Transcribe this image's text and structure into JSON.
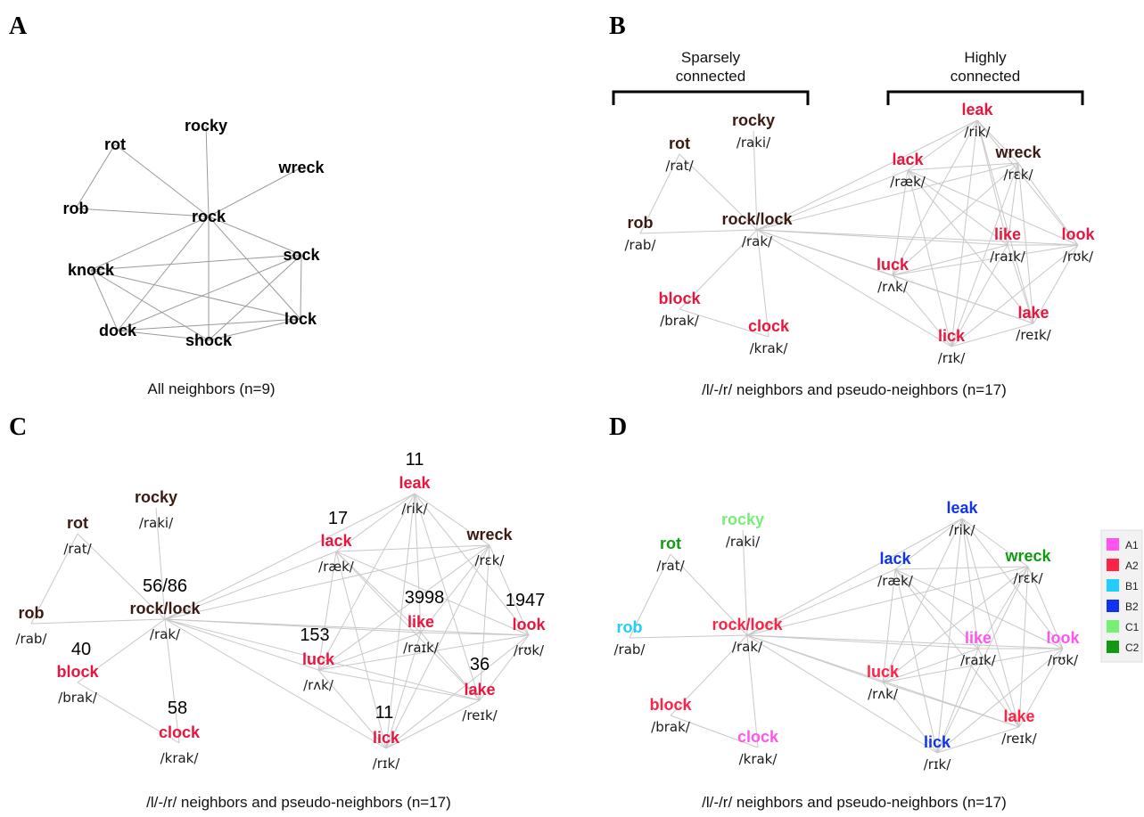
{
  "panels": {
    "A": {
      "letter": "A",
      "caption": "All neighbors (n=9)",
      "nodes": [
        {
          "id": "rocky",
          "label": "rocky"
        },
        {
          "id": "rot",
          "label": "rot"
        },
        {
          "id": "wreck",
          "label": "wreck"
        },
        {
          "id": "rob",
          "label": "rob"
        },
        {
          "id": "rock",
          "label": "rock"
        },
        {
          "id": "sock",
          "label": "sock"
        },
        {
          "id": "knock",
          "label": "knock"
        },
        {
          "id": "lock",
          "label": "lock"
        },
        {
          "id": "dock",
          "label": "dock"
        },
        {
          "id": "shock",
          "label": "shock"
        }
      ],
      "edges": [
        [
          "rot",
          "rob"
        ],
        [
          "rot",
          "rock"
        ],
        [
          "rob",
          "rock"
        ],
        [
          "rocky",
          "rock"
        ],
        [
          "wreck",
          "rock"
        ],
        [
          "rock",
          "knock"
        ],
        [
          "rock",
          "sock"
        ],
        [
          "rock",
          "lock"
        ],
        [
          "rock",
          "dock"
        ],
        [
          "rock",
          "shock"
        ],
        [
          "knock",
          "sock"
        ],
        [
          "knock",
          "lock"
        ],
        [
          "knock",
          "dock"
        ],
        [
          "knock",
          "shock"
        ],
        [
          "sock",
          "dock"
        ],
        [
          "sock",
          "lock"
        ],
        [
          "sock",
          "shock"
        ],
        [
          "dock",
          "lock"
        ],
        [
          "dock",
          "shock"
        ],
        [
          "shock",
          "lock"
        ]
      ]
    },
    "B": {
      "letter": "B",
      "caption": "/l/-/r/ neighbors and pseudo-neighbors (n=17)",
      "bracket_left": [
        "Sparsely",
        "connected"
      ],
      "bracket_right": [
        "Highly",
        "connected"
      ]
    },
    "C": {
      "letter": "C",
      "caption": "/l/-/r/ neighbors and pseudo-neighbors (n=17)",
      "counts": {
        "leak": "11",
        "lack": "17",
        "rocklock": "56/86",
        "like": "3998",
        "look": "1947",
        "luck": "153",
        "block": "40",
        "clock": "58",
        "lick": "11",
        "lake": "36"
      }
    },
    "D": {
      "letter": "D",
      "caption": "/l/-/r/ neighbors and pseudo-neighbors (n=17)",
      "legend": [
        {
          "label": "A1",
          "color": "#ff55ee"
        },
        {
          "label": "A2",
          "color": "#ff2244"
        },
        {
          "label": "B1",
          "color": "#22ccff"
        },
        {
          "label": "B2",
          "color": "#1133ee"
        },
        {
          "label": "C1",
          "color": "#77ee77"
        },
        {
          "label": "C2",
          "color": "#119911"
        }
      ]
    }
  },
  "network_nodes": [
    {
      "id": "rocky",
      "word": "rocky",
      "phon": "/raki/",
      "type": "r",
      "cat": "C1"
    },
    {
      "id": "rot",
      "word": "rot",
      "phon": "/rat/",
      "type": "r",
      "cat": "C2"
    },
    {
      "id": "rob",
      "word": "rob",
      "phon": "/rab/",
      "type": "r",
      "cat": "B1"
    },
    {
      "id": "rocklock",
      "word": "rock/lock",
      "phon": "/rak/",
      "type": "r",
      "cat": "A2"
    },
    {
      "id": "block",
      "word": "block",
      "phon": "/brak/",
      "type": "l",
      "cat": "A2"
    },
    {
      "id": "clock",
      "word": "clock",
      "phon": "/krak/",
      "type": "l",
      "cat": "A1"
    },
    {
      "id": "leak",
      "word": "leak",
      "phon": "/rik/",
      "type": "l",
      "cat": "B2"
    },
    {
      "id": "lack",
      "word": "lack",
      "phon": "/ræk/",
      "type": "l",
      "cat": "B2"
    },
    {
      "id": "wreck",
      "word": "wreck",
      "phon": "/rɛk/",
      "type": "r",
      "cat": "C2"
    },
    {
      "id": "like",
      "word": "like",
      "phon": "/raɪk/",
      "type": "l",
      "cat": "A1"
    },
    {
      "id": "look",
      "word": "look",
      "phon": "/rʊk/",
      "type": "l",
      "cat": "A1"
    },
    {
      "id": "luck",
      "word": "luck",
      "phon": "/rʌk/",
      "type": "l",
      "cat": "A2"
    },
    {
      "id": "lake",
      "word": "lake",
      "phon": "/reɪk/",
      "type": "l",
      "cat": "A2"
    },
    {
      "id": "lick",
      "word": "lick",
      "phon": "/rɪk/",
      "type": "l",
      "cat": "B2"
    }
  ],
  "network_edges": [
    [
      "rot",
      "rob"
    ],
    [
      "rot",
      "rocklock"
    ],
    [
      "rob",
      "rocklock"
    ],
    [
      "rocky",
      "rocklock"
    ],
    [
      "rocklock",
      "block"
    ],
    [
      "rocklock",
      "clock"
    ],
    [
      "block",
      "clock"
    ],
    [
      "rocklock",
      "leak"
    ],
    [
      "rocklock",
      "lack"
    ],
    [
      "rocklock",
      "wreck"
    ],
    [
      "rocklock",
      "like"
    ],
    [
      "rocklock",
      "look"
    ],
    [
      "rocklock",
      "luck"
    ],
    [
      "rocklock",
      "lake"
    ],
    [
      "rocklock",
      "lick"
    ],
    [
      "leak",
      "lack"
    ],
    [
      "leak",
      "wreck"
    ],
    [
      "leak",
      "like"
    ],
    [
      "leak",
      "look"
    ],
    [
      "leak",
      "luck"
    ],
    [
      "leak",
      "lick"
    ],
    [
      "leak",
      "lake"
    ],
    [
      "lack",
      "wreck"
    ],
    [
      "lack",
      "like"
    ],
    [
      "lack",
      "look"
    ],
    [
      "lack",
      "luck"
    ],
    [
      "lack",
      "lick"
    ],
    [
      "lack",
      "lake"
    ],
    [
      "wreck",
      "like"
    ],
    [
      "wreck",
      "look"
    ],
    [
      "wreck",
      "luck"
    ],
    [
      "wreck",
      "lick"
    ],
    [
      "wreck",
      "lake"
    ],
    [
      "like",
      "look"
    ],
    [
      "like",
      "luck"
    ],
    [
      "like",
      "lick"
    ],
    [
      "like",
      "lake"
    ],
    [
      "look",
      "luck"
    ],
    [
      "look",
      "lick"
    ],
    [
      "look",
      "lake"
    ],
    [
      "luck",
      "lick"
    ],
    [
      "luck",
      "lake"
    ],
    [
      "lick",
      "lake"
    ]
  ],
  "colors": {
    "r_word": "#3a1a12",
    "l_word": "#e8163e",
    "edge": "#c8c8c8"
  }
}
